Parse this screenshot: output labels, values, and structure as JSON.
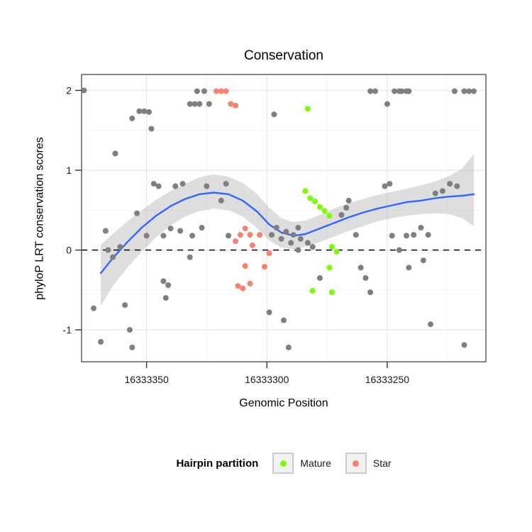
{
  "chart_data": {
    "type": "scatter",
    "title": "Conservation",
    "xlabel": "Genomic Position",
    "ylabel": "phyloP LRT conservation scores",
    "x_reversed": true,
    "x_range": [
      16333377,
      16333209
    ],
    "y_range": [
      -1.4,
      2.2
    ],
    "x_ticks": [
      {
        "value": 16333350,
        "label": "16333350"
      },
      {
        "value": 16333300,
        "label": "16333300"
      },
      {
        "value": 16333250,
        "label": "16333250"
      }
    ],
    "x_minor": [
      16333375,
      16333325,
      16333275,
      16333225
    ],
    "y_ticks": [
      {
        "value": 2,
        "label": "2"
      },
      {
        "value": 1,
        "label": "1"
      },
      {
        "value": 0,
        "label": "0"
      },
      {
        "value": -1,
        "label": "-1"
      }
    ],
    "y_minor": [
      1.5,
      0.5,
      -0.5
    ],
    "reference_line": {
      "y": 0,
      "style": "dashed",
      "color": "#000000"
    },
    "colors": {
      "unpartitioned": "#7F7F7F",
      "mature": "#7CFC00",
      "star": "#FA8072",
      "smooth_line": "#3366FF",
      "smooth_band": "rgba(160,160,160,0.35)",
      "grid_major": "#E8E8E8",
      "grid_minor": "#F4F4F4",
      "panel_border": "#6B6B6B",
      "tick": "#333333",
      "text": "#1a1a1a"
    },
    "smooth": [
      {
        "x": 16333369,
        "y": -0.29,
        "lo": -0.7,
        "hi": 0.07
      },
      {
        "x": 16333364,
        "y": -0.1,
        "lo": -0.45,
        "hi": 0.2
      },
      {
        "x": 16333358,
        "y": 0.1,
        "lo": -0.22,
        "hi": 0.36
      },
      {
        "x": 16333352,
        "y": 0.28,
        "lo": -0.02,
        "hi": 0.5
      },
      {
        "x": 16333346,
        "y": 0.43,
        "lo": 0.16,
        "hi": 0.63
      },
      {
        "x": 16333340,
        "y": 0.55,
        "lo": 0.31,
        "hi": 0.74
      },
      {
        "x": 16333334,
        "y": 0.64,
        "lo": 0.42,
        "hi": 0.83
      },
      {
        "x": 16333328,
        "y": 0.7,
        "lo": 0.49,
        "hi": 0.91
      },
      {
        "x": 16333322,
        "y": 0.72,
        "lo": 0.52,
        "hi": 0.95
      },
      {
        "x": 16333316,
        "y": 0.7,
        "lo": 0.5,
        "hi": 0.92
      },
      {
        "x": 16333310,
        "y": 0.62,
        "lo": 0.42,
        "hi": 0.84
      },
      {
        "x": 16333304,
        "y": 0.48,
        "lo": 0.27,
        "hi": 0.7
      },
      {
        "x": 16333299,
        "y": 0.32,
        "lo": 0.12,
        "hi": 0.53
      },
      {
        "x": 16333294,
        "y": 0.22,
        "lo": 0.03,
        "hi": 0.4
      },
      {
        "x": 16333289,
        "y": 0.18,
        "lo": 0.01,
        "hi": 0.35
      },
      {
        "x": 16333284,
        "y": 0.2,
        "lo": 0.04,
        "hi": 0.37
      },
      {
        "x": 16333278,
        "y": 0.27,
        "lo": 0.1,
        "hi": 0.44
      },
      {
        "x": 16333272,
        "y": 0.34,
        "lo": 0.17,
        "hi": 0.52
      },
      {
        "x": 16333266,
        "y": 0.41,
        "lo": 0.24,
        "hi": 0.59
      },
      {
        "x": 16333260,
        "y": 0.47,
        "lo": 0.3,
        "hi": 0.64
      },
      {
        "x": 16333254,
        "y": 0.52,
        "lo": 0.36,
        "hi": 0.69
      },
      {
        "x": 16333248,
        "y": 0.56,
        "lo": 0.4,
        "hi": 0.73
      },
      {
        "x": 16333242,
        "y": 0.6,
        "lo": 0.43,
        "hi": 0.77
      },
      {
        "x": 16333236,
        "y": 0.62,
        "lo": 0.45,
        "hi": 0.81
      },
      {
        "x": 16333230,
        "y": 0.65,
        "lo": 0.46,
        "hi": 0.86
      },
      {
        "x": 16333224,
        "y": 0.67,
        "lo": 0.45,
        "hi": 0.93
      },
      {
        "x": 16333219,
        "y": 0.68,
        "lo": 0.4,
        "hi": 1.02
      },
      {
        "x": 16333214,
        "y": 0.7,
        "lo": 0.3,
        "hi": 1.2
      }
    ],
    "series": [
      {
        "name": "Unpartitioned",
        "color": "#7F7F7F",
        "points": [
          [
            16333376,
            2.0
          ],
          [
            16333363,
            1.21
          ],
          [
            16333367,
            0.24
          ],
          [
            16333366,
            0.0
          ],
          [
            16333364,
            -0.09
          ],
          [
            16333361,
            0.04
          ],
          [
            16333372,
            -0.73
          ],
          [
            16333369,
            -1.15
          ],
          [
            16333359,
            -0.69
          ],
          [
            16333357,
            -1.0
          ],
          [
            16333356,
            -1.22
          ],
          [
            16333356,
            1.65
          ],
          [
            16333353,
            1.74
          ],
          [
            16333351,
            1.74
          ],
          [
            16333349,
            1.73
          ],
          [
            16333348,
            1.52
          ],
          [
            16333354,
            0.46
          ],
          [
            16333350,
            0.18
          ],
          [
            16333347,
            0.83
          ],
          [
            16333345,
            0.8
          ],
          [
            16333343,
            0.18
          ],
          [
            16333343,
            -0.39
          ],
          [
            16333340,
            0.27
          ],
          [
            16333341,
            -0.44
          ],
          [
            16333342,
            -0.6
          ],
          [
            16333338,
            0.8
          ],
          [
            16333336,
            0.24
          ],
          [
            16333335,
            0.83
          ],
          [
            16333332,
            1.83
          ],
          [
            16333330,
            1.83
          ],
          [
            16333328,
            1.83
          ],
          [
            16333324,
            1.83
          ],
          [
            16333329,
            1.99
          ],
          [
            16333326,
            1.99
          ],
          [
            16333331,
            0.18
          ],
          [
            16333332,
            -0.09
          ],
          [
            16333327,
            0.28
          ],
          [
            16333325,
            0.8
          ],
          [
            16333319,
            0.62
          ],
          [
            16333317,
            0.83
          ],
          [
            16333316,
            0.18
          ],
          [
            16333297,
            1.7
          ],
          [
            16333299,
            -0.78
          ],
          [
            16333293,
            -0.88
          ],
          [
            16333291,
            -1.22
          ],
          [
            16333298,
            0.19
          ],
          [
            16333296,
            0.28
          ],
          [
            16333294,
            0.14
          ],
          [
            16333292,
            0.23
          ],
          [
            16333290,
            0.09
          ],
          [
            16333289,
            0.19
          ],
          [
            16333287,
            0.28
          ],
          [
            16333286,
            0.14
          ],
          [
            16333287,
            0.0
          ],
          [
            16333283,
            0.09
          ],
          [
            16333281,
            0.04
          ],
          [
            16333257,
            1.99
          ],
          [
            16333255,
            1.99
          ],
          [
            16333250,
            1.83
          ],
          [
            16333247,
            1.99
          ],
          [
            16333245,
            1.99
          ],
          [
            16333244,
            1.99
          ],
          [
            16333242,
            1.99
          ],
          [
            16333241,
            1.99
          ],
          [
            16333222,
            1.99
          ],
          [
            16333218,
            1.99
          ],
          [
            16333216,
            1.99
          ],
          [
            16333214,
            1.99
          ],
          [
            16333269,
            0.44
          ],
          [
            16333267,
            0.53
          ],
          [
            16333266,
            0.62
          ],
          [
            16333263,
            0.19
          ],
          [
            16333261,
            -0.22
          ],
          [
            16333259,
            -0.35
          ],
          [
            16333257,
            -0.53
          ],
          [
            16333251,
            0.8
          ],
          [
            16333249,
            0.83
          ],
          [
            16333248,
            0.18
          ],
          [
            16333245,
            0.0
          ],
          [
            16333242,
            0.18
          ],
          [
            16333241,
            -0.22
          ],
          [
            16333239,
            0.19
          ],
          [
            16333236,
            0.28
          ],
          [
            16333235,
            -0.13
          ],
          [
            16333233,
            0.19
          ],
          [
            16333232,
            -0.93
          ],
          [
            16333230,
            0.71
          ],
          [
            16333227,
            0.74
          ],
          [
            16333224,
            0.83
          ],
          [
            16333221,
            0.8
          ],
          [
            16333218,
            -1.19
          ],
          [
            16333278,
            -0.35
          ]
        ]
      },
      {
        "name": "Star",
        "color": "#FA8072",
        "points": [
          [
            16333321,
            1.99
          ],
          [
            16333319,
            1.99
          ],
          [
            16333317,
            1.99
          ],
          [
            16333315,
            1.83
          ],
          [
            16333313,
            1.81
          ],
          [
            16333313,
            0.11
          ],
          [
            16333311,
            0.19
          ],
          [
            16333309,
            0.27
          ],
          [
            16333307,
            0.19
          ],
          [
            16333306,
            0.06
          ],
          [
            16333309,
            -0.2
          ],
          [
            16333307,
            -0.42
          ],
          [
            16333312,
            -0.45
          ],
          [
            16333310,
            -0.48
          ],
          [
            16333303,
            0.19
          ],
          [
            16333301,
            -0.21
          ],
          [
            16333299,
            -0.04
          ]
        ]
      },
      {
        "name": "Mature",
        "color": "#7CFC00",
        "points": [
          [
            16333283,
            1.77
          ],
          [
            16333284,
            0.74
          ],
          [
            16333282,
            0.65
          ],
          [
            16333280,
            0.61
          ],
          [
            16333278,
            0.54
          ],
          [
            16333276,
            0.49
          ],
          [
            16333274,
            0.43
          ],
          [
            16333273,
            0.04
          ],
          [
            16333271,
            -0.02
          ],
          [
            16333274,
            -0.22
          ],
          [
            16333273,
            -0.53
          ],
          [
            16333281,
            -0.51
          ]
        ]
      }
    ],
    "legend": {
      "title": "Hairpin partition",
      "position": "bottom",
      "entries": [
        {
          "label": "Mature",
          "color": "#7CFC00"
        },
        {
          "label": "Star",
          "color": "#FA8072"
        }
      ]
    }
  }
}
